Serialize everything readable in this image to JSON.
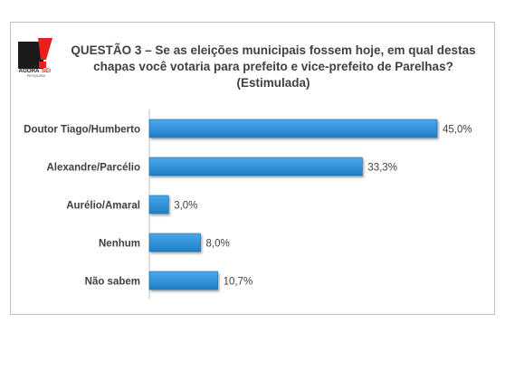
{
  "logo": {
    "text_main": "AGORA",
    "text_accent": "SEI",
    "text_sub": "PESQUISA"
  },
  "colors": {
    "bar": "#2a8fd6",
    "bar_dark": "#1a6aa8",
    "text": "#404040",
    "brand_red": "#e8211d",
    "border": "#bfbfbf"
  },
  "chart_data": {
    "type": "bar",
    "orientation": "horizontal",
    "title_lines": [
      "QUESTÃO 3 – Se as eleições municipais fossem hoje, em qual destas",
      "chapas você votaria para prefeito e vice-prefeito de Parelhas?",
      "(Estimulada)"
    ],
    "categories": [
      "Doutor Tiago/Humberto",
      "Alexandre/Parcélio",
      "Aurélio/Amaral",
      "Nenhum",
      "Não sabem"
    ],
    "values": [
      45.0,
      33.3,
      3.0,
      8.0,
      10.7
    ],
    "value_labels": [
      "45,0%",
      "33,3%",
      "3,0%",
      "8,0%",
      "10,7%"
    ],
    "xlim": [
      0,
      45
    ],
    "xlabel": "",
    "ylabel": "",
    "grid": false,
    "legend": "none"
  }
}
